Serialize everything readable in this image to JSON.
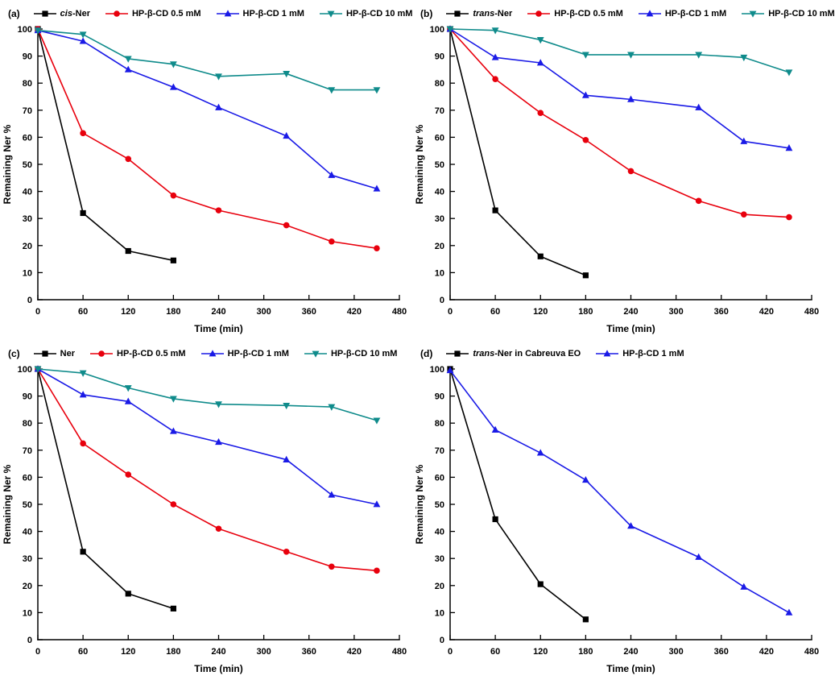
{
  "chart_data": [
    {
      "type": "line",
      "panel_label": "(a)",
      "xlabel": "Time (min)",
      "ylabel": "Remaining Ner %",
      "xlim": [
        0,
        480
      ],
      "ylim": [
        0,
        100
      ],
      "xticks": [
        0,
        60,
        120,
        180,
        240,
        300,
        360,
        420,
        480
      ],
      "yticks": [
        0,
        10,
        20,
        30,
        40,
        50,
        60,
        70,
        80,
        90,
        100
      ],
      "grid": false,
      "legend_position": "top",
      "series": [
        {
          "name": "cis-Ner",
          "italic_part": "cis",
          "color": "#000000",
          "marker": "square",
          "x": [
            0,
            60,
            120,
            180
          ],
          "y": [
            100,
            32,
            18,
            14.5
          ]
        },
        {
          "name": "HP-β-CD 0.5 mM",
          "color": "#e8000d",
          "marker": "circle",
          "x": [
            0,
            60,
            120,
            180,
            240,
            330,
            390,
            450
          ],
          "y": [
            100,
            61.5,
            52,
            38.5,
            33,
            27.5,
            21.5,
            19
          ]
        },
        {
          "name": "HP-β-CD 1 mM",
          "color": "#1a1ae6",
          "marker": "triangle-up",
          "x": [
            0,
            60,
            120,
            180,
            240,
            330,
            390,
            450
          ],
          "y": [
            99.5,
            95.5,
            85,
            78.5,
            71,
            60.5,
            46,
            41
          ]
        },
        {
          "name": "HP-β-CD 10 mM",
          "color": "#0f8b8b",
          "marker": "triangle-down",
          "x": [
            0,
            60,
            120,
            180,
            240,
            330,
            390,
            450
          ],
          "y": [
            99.5,
            98,
            89,
            87,
            82.5,
            83.5,
            77.5,
            77.5
          ]
        }
      ]
    },
    {
      "type": "line",
      "panel_label": "(b)",
      "xlabel": "Time (min)",
      "ylabel": "Remaining Ner %",
      "xlim": [
        0,
        480
      ],
      "ylim": [
        0,
        100
      ],
      "xticks": [
        0,
        60,
        120,
        180,
        240,
        300,
        360,
        420,
        480
      ],
      "yticks": [
        0,
        10,
        20,
        30,
        40,
        50,
        60,
        70,
        80,
        90,
        100
      ],
      "grid": false,
      "legend_position": "top",
      "series": [
        {
          "name": "trans-Ner",
          "italic_part": "trans",
          "color": "#000000",
          "marker": "square",
          "x": [
            0,
            60,
            120,
            180
          ],
          "y": [
            100,
            33,
            16,
            9
          ]
        },
        {
          "name": "HP-β-CD 0.5 mM",
          "color": "#e8000d",
          "marker": "circle",
          "x": [
            0,
            60,
            120,
            180,
            240,
            330,
            390,
            450
          ],
          "y": [
            100,
            81.5,
            69,
            59,
            47.5,
            36.5,
            31.5,
            30.5
          ]
        },
        {
          "name": "HP-β-CD 1 mM",
          "color": "#1a1ae6",
          "marker": "triangle-up",
          "x": [
            0,
            60,
            120,
            180,
            240,
            330,
            390,
            450
          ],
          "y": [
            100,
            89.5,
            87.5,
            75.5,
            74,
            71,
            58.5,
            56
          ]
        },
        {
          "name": "HP-β-CD 10 mM",
          "color": "#0f8b8b",
          "marker": "triangle-down",
          "x": [
            0,
            60,
            120,
            180,
            240,
            330,
            390,
            450
          ],
          "y": [
            100,
            99.5,
            96,
            90.5,
            90.5,
            90.5,
            89.5,
            84
          ]
        }
      ]
    },
    {
      "type": "line",
      "panel_label": "(c)",
      "xlabel": "Time (min)",
      "ylabel": "Remaining Ner %",
      "xlim": [
        0,
        480
      ],
      "ylim": [
        0,
        100
      ],
      "xticks": [
        0,
        60,
        120,
        180,
        240,
        300,
        360,
        420,
        480
      ],
      "yticks": [
        0,
        10,
        20,
        30,
        40,
        50,
        60,
        70,
        80,
        90,
        100
      ],
      "grid": false,
      "legend_position": "top",
      "series": [
        {
          "name": "Ner",
          "color": "#000000",
          "marker": "square",
          "x": [
            0,
            60,
            120,
            180
          ],
          "y": [
            100,
            32.5,
            17,
            11.5
          ]
        },
        {
          "name": "HP-β-CD 0.5 mM",
          "color": "#e8000d",
          "marker": "circle",
          "x": [
            0,
            60,
            120,
            180,
            240,
            330,
            390,
            450
          ],
          "y": [
            100,
            72.5,
            61,
            50,
            41,
            32.5,
            27,
            25.5
          ]
        },
        {
          "name": "HP-β-CD 1 mM",
          "color": "#1a1ae6",
          "marker": "triangle-up",
          "x": [
            0,
            60,
            120,
            180,
            240,
            330,
            390,
            450
          ],
          "y": [
            100,
            90.5,
            88,
            77,
            73,
            66.5,
            53.5,
            50
          ]
        },
        {
          "name": "HP-β-CD 10 mM",
          "color": "#0f8b8b",
          "marker": "triangle-down",
          "x": [
            0,
            60,
            120,
            180,
            240,
            330,
            390,
            450
          ],
          "y": [
            100,
            98.5,
            93,
            89,
            87,
            86.5,
            86,
            81
          ]
        }
      ]
    },
    {
      "type": "line",
      "panel_label": "(d)",
      "xlabel": "Time (min)",
      "ylabel": "Remaining Ner %",
      "xlim": [
        0,
        480
      ],
      "ylim": [
        0,
        100
      ],
      "xticks": [
        0,
        60,
        120,
        180,
        240,
        300,
        360,
        420,
        480
      ],
      "yticks": [
        0,
        10,
        20,
        30,
        40,
        50,
        60,
        70,
        80,
        90,
        100
      ],
      "grid": false,
      "legend_position": "top",
      "series": [
        {
          "name": "trans-Ner in Cabreuva EO",
          "italic_part": "trans",
          "color": "#000000",
          "marker": "square",
          "x": [
            0,
            60,
            120,
            180
          ],
          "y": [
            100,
            44.5,
            20.5,
            7.5
          ]
        },
        {
          "name": "HP-β-CD 1 mM",
          "color": "#1a1ae6",
          "marker": "triangle-up",
          "x": [
            0,
            60,
            120,
            180,
            240,
            330,
            390,
            450
          ],
          "y": [
            99.5,
            77.5,
            69,
            59,
            42,
            30.5,
            19.5,
            10
          ]
        }
      ]
    }
  ]
}
